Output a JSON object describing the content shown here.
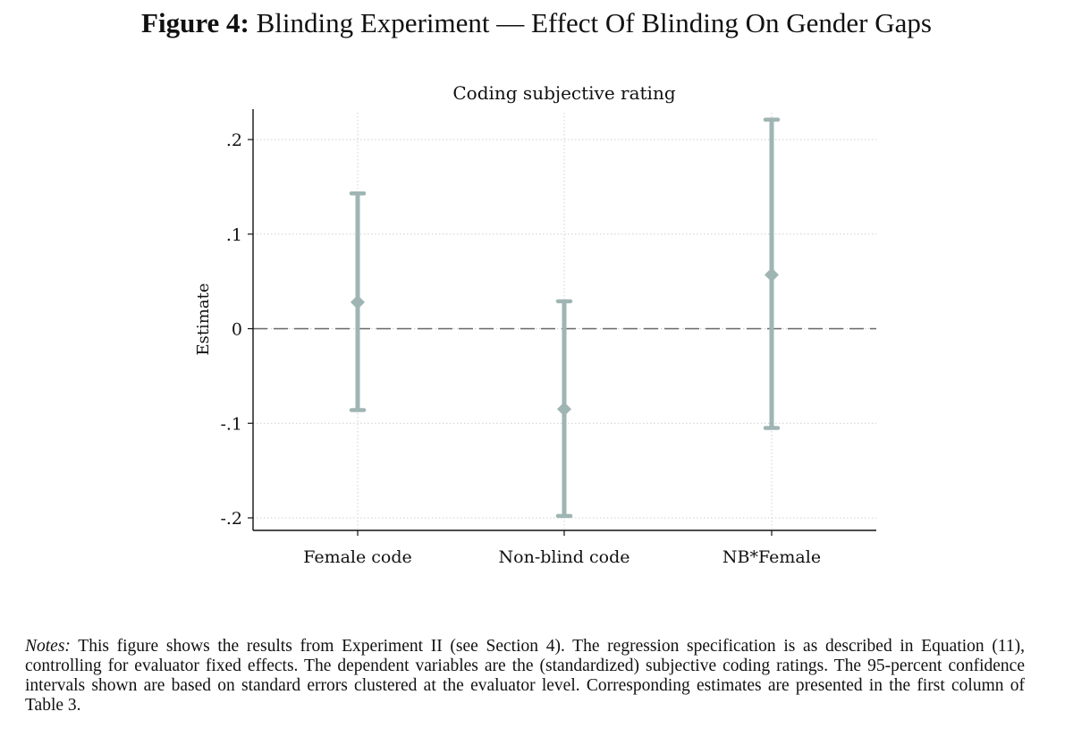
{
  "figure": {
    "label": "Figure 4:",
    "title": "Blinding Experiment — Effect Of Blinding On Gender Gaps"
  },
  "notes": {
    "label": "Notes:",
    "text": "This figure shows the results from Experiment II (see Section 4). The regression specification is as described in Equation (11), controlling for evaluator fixed effects. The dependent variables are the (standardized) subjective coding ratings. The 95-percent confidence intervals shown are based on standard errors clustered at the evaluator level. Corresponding estimates are presented in the first column of Table 3."
  },
  "chart_data": {
    "type": "scatter",
    "title": "Coding subjective rating",
    "ylabel": "Estimate",
    "xlabel": "",
    "ylim": [
      -0.2,
      0.2
    ],
    "yticks": [
      0.2,
      0.1,
      0,
      -0.1,
      -0.2
    ],
    "ytick_labels": [
      ".2",
      ".1",
      "0",
      "-.1",
      "-.2"
    ],
    "categories": [
      "Female code",
      "Non-blind code",
      "NB*Female"
    ],
    "estimates": [
      0.028,
      -0.085,
      0.057
    ],
    "ci_lower": [
      -0.086,
      -0.198,
      -0.105
    ],
    "ci_upper": [
      0.143,
      0.029,
      0.221
    ],
    "reference_line": 0,
    "grid": true,
    "marker_color": "#9fb5b3",
    "reference_line_color": "#666666"
  }
}
